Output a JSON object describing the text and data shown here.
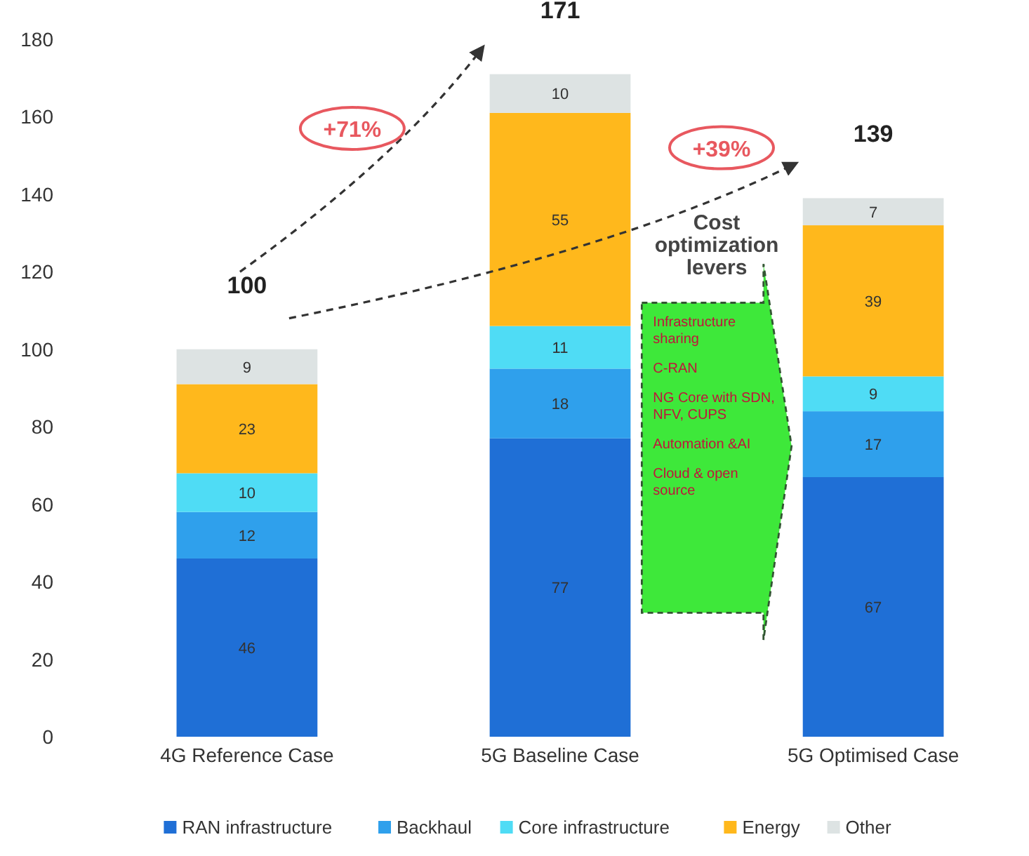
{
  "chart_data": {
    "type": "bar",
    "stacked": true,
    "categories": [
      "4G Reference Case",
      "5G Baseline Case",
      "5G Optimised Case"
    ],
    "series": [
      {
        "name": "RAN infrastructure",
        "color": "#1f6fd6",
        "values": [
          46,
          77,
          67
        ]
      },
      {
        "name": "Backhaul",
        "color": "#2fa0ec",
        "values": [
          12,
          18,
          17
        ]
      },
      {
        "name": "Core infrastructure",
        "color": "#4fdcf5",
        "values": [
          10,
          11,
          9
        ]
      },
      {
        "name": "Energy",
        "color": "#ffb81c",
        "values": [
          23,
          55,
          39
        ]
      },
      {
        "name": "Other",
        "color": "#dde3e3",
        "values": [
          9,
          10,
          7
        ]
      }
    ],
    "totals": [
      "100",
      "171",
      "139"
    ],
    "data_labels": true,
    "ylim": [
      0,
      180
    ],
    "yticks": [
      0,
      20,
      40,
      60,
      80,
      100,
      120,
      140,
      160,
      180
    ],
    "grid": false,
    "legend": "bottom",
    "annotations": [
      "+71%",
      "+39%",
      "Cost optimization levers",
      "Infrastructure sharing",
      "C-RAN",
      "NG Core with SDN, NFV, CUPS",
      "Automation &AI",
      "Cloud & open source"
    ]
  }
}
